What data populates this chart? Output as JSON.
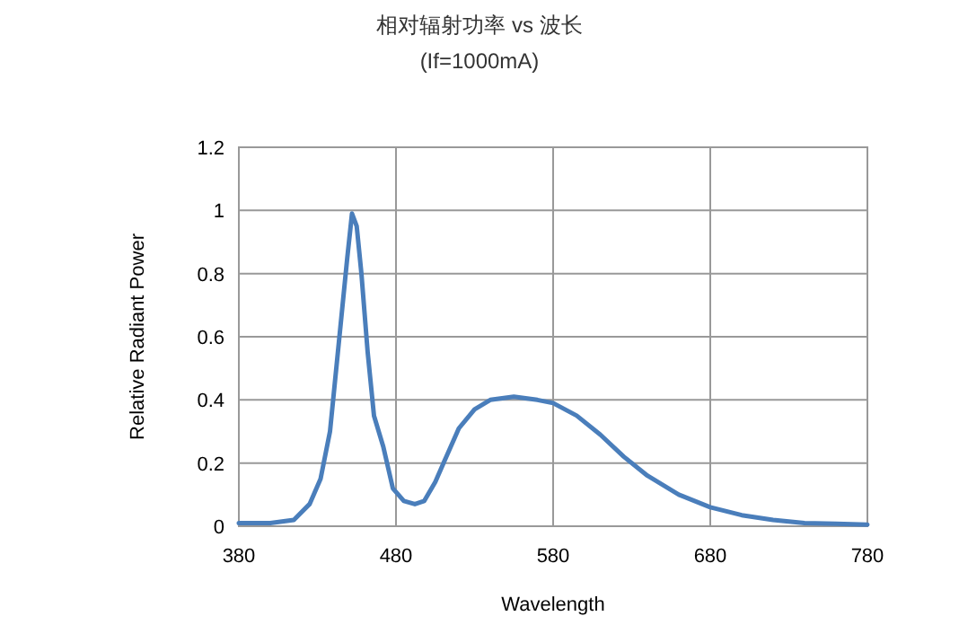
{
  "chart_data": {
    "type": "line",
    "title": "相对辐射功率 vs 波长",
    "subtitle": "(If=1000mA)",
    "xlabel": "Wavelength",
    "ylabel": "Relative Radiant  Power",
    "xlim": [
      380,
      780
    ],
    "xticks": [
      380,
      480,
      580,
      680,
      780
    ],
    "ylim": [
      0,
      1.2
    ],
    "yticks": [
      0,
      0.2,
      0.4,
      0.6,
      0.8,
      1,
      1.2
    ],
    "grid": true,
    "marker": "none",
    "series": [
      {
        "color": "#4a7ebb",
        "x": [
          380,
          400,
          415,
          425,
          432,
          438,
          444,
          449,
          452,
          455,
          458,
          462,
          466,
          472,
          478,
          485,
          492,
          498,
          505,
          512,
          520,
          530,
          540,
          555,
          570,
          580,
          595,
          610,
          625,
          640,
          660,
          680,
          700,
          720,
          740,
          760,
          780
        ],
        "values": [
          0.01,
          0.01,
          0.02,
          0.07,
          0.15,
          0.3,
          0.6,
          0.85,
          0.99,
          0.95,
          0.8,
          0.55,
          0.35,
          0.25,
          0.12,
          0.08,
          0.07,
          0.08,
          0.14,
          0.22,
          0.31,
          0.37,
          0.4,
          0.41,
          0.4,
          0.39,
          0.35,
          0.29,
          0.22,
          0.16,
          0.1,
          0.06,
          0.035,
          0.02,
          0.01,
          0.008,
          0.005
        ]
      }
    ]
  }
}
